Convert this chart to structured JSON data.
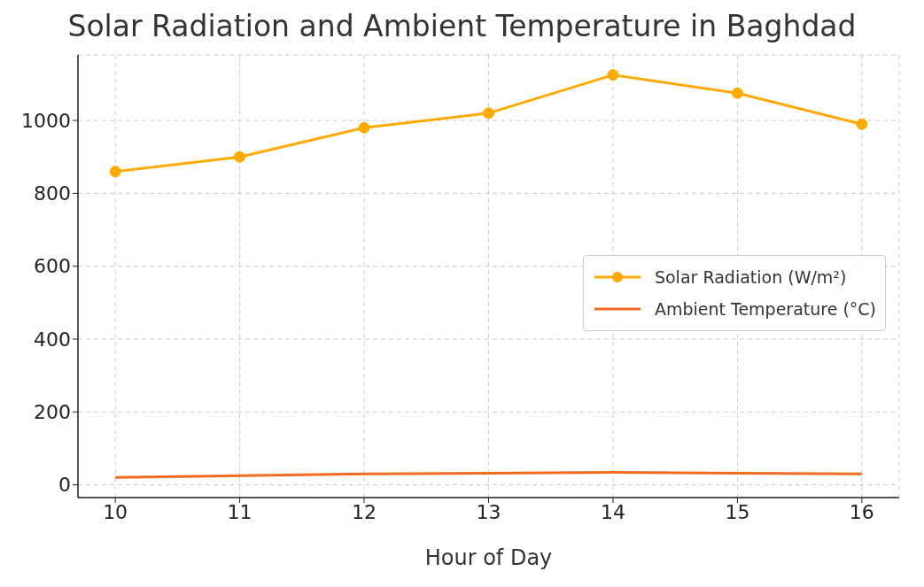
{
  "chart_data": {
    "type": "line",
    "title": "Solar Radiation and Ambient Temperature in Baghdad",
    "xlabel": "Hour of Day",
    "x": [
      10,
      11,
      12,
      13,
      14,
      15,
      16
    ],
    "series": [
      {
        "name": "Solar Radiation (W/m²)",
        "color": "#ffaa00",
        "values": [
          860,
          900,
          980,
          1020,
          1125,
          1075,
          990
        ],
        "marker": "circle"
      },
      {
        "name": "Ambient Temperature (°C)",
        "color": "#f26b21",
        "values": [
          20,
          25,
          30,
          32,
          34,
          32,
          30
        ],
        "marker": "none"
      }
    ],
    "xlim": [
      9.7,
      16.3
    ],
    "xticks": [
      10,
      11,
      12,
      13,
      14,
      15,
      16
    ],
    "ylim": [
      -35,
      1180
    ],
    "yticks": [
      0,
      200,
      400,
      600,
      800,
      1000
    ],
    "grid": true,
    "legend": "center right",
    "line_style": "solid"
  }
}
